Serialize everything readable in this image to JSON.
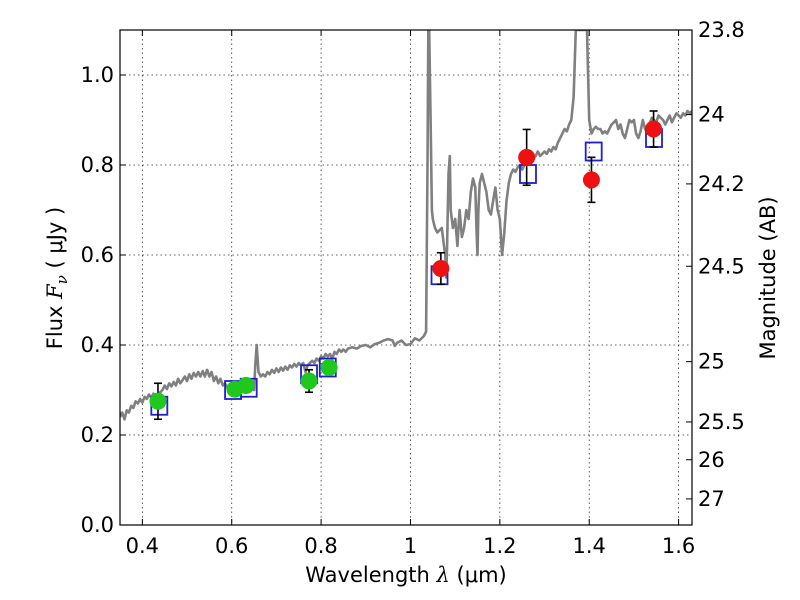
{
  "chart_data": {
    "type": "scatter",
    "xlabel_text": "Wavelength",
    "xlabel_symbol": "λ",
    "xlabel_unit": "(μm)",
    "ylabel_text": "Flux",
    "ylabel_symbol": "F",
    "ylabel_sub": "ν",
    "ylabel_unit": "( μJy )",
    "y2label": "Magnitude (AB)",
    "xlim": [
      0.35,
      1.63
    ],
    "ylim": [
      0.0,
      1.1
    ],
    "grid": true,
    "x_ticks": [
      {
        "value": 0.4,
        "label": "0.4"
      },
      {
        "value": 0.6,
        "label": "0.6"
      },
      {
        "value": 0.8,
        "label": "0.8"
      },
      {
        "value": 1.0,
        "label": "1"
      },
      {
        "value": 1.2,
        "label": "1.2"
      },
      {
        "value": 1.4,
        "label": "1.4"
      },
      {
        "value": 1.6,
        "label": "1.6"
      }
    ],
    "y_ticks": [
      {
        "value": 0.0,
        "label": "0.0"
      },
      {
        "value": 0.2,
        "label": "0.2"
      },
      {
        "value": 0.4,
        "label": "0.4"
      },
      {
        "value": 0.6,
        "label": "0.6"
      },
      {
        "value": 0.8,
        "label": "0.8"
      },
      {
        "value": 1.0,
        "label": "1.0"
      }
    ],
    "y2_ticks": [
      {
        "flux": 1.1,
        "label": "23.8"
      },
      {
        "flux": 0.912,
        "label": "24"
      },
      {
        "flux": 0.758,
        "label": "24.2"
      },
      {
        "flux": 0.575,
        "label": "24.5"
      },
      {
        "flux": 0.363,
        "label": "25"
      },
      {
        "flux": 0.229,
        "label": "25.5"
      },
      {
        "flux": 0.145,
        "label": "26"
      },
      {
        "flux": 0.058,
        "label": "27"
      }
    ],
    "template_spectrum": {
      "color": "#808080",
      "points": [
        [
          0.35,
          0.24
        ],
        [
          0.355,
          0.25
        ],
        [
          0.36,
          0.235
        ],
        [
          0.365,
          0.255
        ],
        [
          0.37,
          0.25
        ],
        [
          0.375,
          0.265
        ],
        [
          0.38,
          0.26
        ],
        [
          0.385,
          0.275
        ],
        [
          0.39,
          0.27
        ],
        [
          0.395,
          0.28
        ],
        [
          0.4,
          0.272
        ],
        [
          0.405,
          0.285
        ],
        [
          0.41,
          0.28
        ],
        [
          0.415,
          0.29
        ],
        [
          0.42,
          0.283
        ],
        [
          0.425,
          0.292
        ],
        [
          0.43,
          0.288
        ],
        [
          0.435,
          0.285
        ],
        [
          0.44,
          0.295
        ],
        [
          0.445,
          0.3
        ],
        [
          0.45,
          0.31
        ],
        [
          0.455,
          0.302
        ],
        [
          0.46,
          0.315
        ],
        [
          0.465,
          0.308
        ],
        [
          0.47,
          0.318
        ],
        [
          0.475,
          0.31
        ],
        [
          0.48,
          0.325
        ],
        [
          0.485,
          0.315
        ],
        [
          0.49,
          0.322
        ],
        [
          0.495,
          0.33
        ],
        [
          0.5,
          0.32
        ],
        [
          0.505,
          0.335
        ],
        [
          0.51,
          0.325
        ],
        [
          0.515,
          0.338
        ],
        [
          0.52,
          0.33
        ],
        [
          0.525,
          0.34
        ],
        [
          0.53,
          0.33
        ],
        [
          0.535,
          0.342
        ],
        [
          0.54,
          0.33
        ],
        [
          0.545,
          0.345
        ],
        [
          0.55,
          0.33
        ],
        [
          0.555,
          0.34
        ],
        [
          0.56,
          0.32
        ],
        [
          0.565,
          0.33
        ],
        [
          0.57,
          0.315
        ],
        [
          0.575,
          0.325
        ],
        [
          0.58,
          0.31
        ],
        [
          0.585,
          0.315
        ],
        [
          0.59,
          0.305
        ],
        [
          0.595,
          0.31
        ],
        [
          0.6,
          0.3
        ],
        [
          0.605,
          0.305
        ],
        [
          0.61,
          0.3
        ],
        [
          0.615,
          0.31
        ],
        [
          0.62,
          0.305
        ],
        [
          0.625,
          0.31
        ],
        [
          0.63,
          0.305
        ],
        [
          0.635,
          0.315
        ],
        [
          0.64,
          0.31
        ],
        [
          0.645,
          0.32
        ],
        [
          0.65,
          0.3
        ],
        [
          0.653,
          0.36
        ],
        [
          0.656,
          0.4
        ],
        [
          0.66,
          0.34
        ],
        [
          0.665,
          0.33
        ],
        [
          0.67,
          0.335
        ],
        [
          0.675,
          0.33
        ],
        [
          0.68,
          0.34
        ],
        [
          0.685,
          0.335
        ],
        [
          0.69,
          0.345
        ],
        [
          0.695,
          0.338
        ],
        [
          0.7,
          0.348
        ],
        [
          0.705,
          0.34
        ],
        [
          0.71,
          0.35
        ],
        [
          0.715,
          0.343
        ],
        [
          0.72,
          0.352
        ],
        [
          0.725,
          0.345
        ],
        [
          0.73,
          0.355
        ],
        [
          0.735,
          0.35
        ],
        [
          0.74,
          0.358
        ],
        [
          0.745,
          0.352
        ],
        [
          0.75,
          0.36
        ],
        [
          0.755,
          0.355
        ],
        [
          0.76,
          0.36
        ],
        [
          0.765,
          0.34
        ],
        [
          0.77,
          0.355
        ],
        [
          0.775,
          0.36
        ],
        [
          0.78,
          0.365
        ],
        [
          0.785,
          0.36
        ],
        [
          0.79,
          0.37
        ],
        [
          0.795,
          0.365
        ],
        [
          0.8,
          0.375
        ],
        [
          0.805,
          0.37
        ],
        [
          0.81,
          0.38
        ],
        [
          0.815,
          0.375
        ],
        [
          0.82,
          0.38
        ],
        [
          0.825,
          0.37
        ],
        [
          0.83,
          0.385
        ],
        [
          0.835,
          0.38
        ],
        [
          0.84,
          0.39
        ],
        [
          0.845,
          0.385
        ],
        [
          0.85,
          0.39
        ],
        [
          0.855,
          0.385
        ],
        [
          0.86,
          0.392
        ],
        [
          0.87,
          0.395
        ],
        [
          0.88,
          0.392
        ],
        [
          0.89,
          0.398
        ],
        [
          0.9,
          0.4
        ],
        [
          0.91,
          0.395
        ],
        [
          0.92,
          0.402
        ],
        [
          0.93,
          0.405
        ],
        [
          0.94,
          0.41
        ],
        [
          0.95,
          0.413
        ],
        [
          0.96,
          0.41
        ],
        [
          0.965,
          0.398
        ],
        [
          0.97,
          0.405
        ],
        [
          0.98,
          0.41
        ],
        [
          0.99,
          0.4
        ],
        [
          1.0,
          0.402
        ],
        [
          1.01,
          0.415
        ],
        [
          1.02,
          0.41
        ],
        [
          1.03,
          0.42
        ],
        [
          1.035,
          0.43
        ],
        [
          1.038,
          0.8
        ],
        [
          1.04,
          1.1
        ],
        [
          1.042,
          1.1
        ],
        [
          1.045,
          0.9
        ],
        [
          1.048,
          0.7
        ],
        [
          1.05,
          0.68
        ],
        [
          1.055,
          0.66
        ],
        [
          1.06,
          0.65
        ],
        [
          1.065,
          0.655
        ],
        [
          1.07,
          0.66
        ],
        [
          1.075,
          0.62
        ],
        [
          1.078,
          0.6
        ],
        [
          1.08,
          0.55
        ],
        [
          1.082,
          0.62
        ],
        [
          1.085,
          0.78
        ],
        [
          1.088,
          0.82
        ],
        [
          1.09,
          0.7
        ],
        [
          1.095,
          0.66
        ],
        [
          1.1,
          0.68
        ],
        [
          1.105,
          0.62
        ],
        [
          1.11,
          0.7
        ],
        [
          1.115,
          0.64
        ],
        [
          1.12,
          0.66
        ],
        [
          1.125,
          0.7
        ],
        [
          1.13,
          0.68
        ],
        [
          1.135,
          0.74
        ],
        [
          1.14,
          0.77
        ],
        [
          1.145,
          0.75
        ],
        [
          1.148,
          0.65
        ],
        [
          1.15,
          0.6
        ],
        [
          1.152,
          0.7
        ],
        [
          1.155,
          0.76
        ],
        [
          1.16,
          0.78
        ],
        [
          1.165,
          0.76
        ],
        [
          1.17,
          0.74
        ],
        [
          1.175,
          0.7
        ],
        [
          1.18,
          0.69
        ],
        [
          1.185,
          0.72
        ],
        [
          1.19,
          0.75
        ],
        [
          1.195,
          0.7
        ],
        [
          1.2,
          0.68
        ],
        [
          1.205,
          0.6
        ],
        [
          1.21,
          0.65
        ],
        [
          1.215,
          0.72
        ],
        [
          1.22,
          0.76
        ],
        [
          1.225,
          0.78
        ],
        [
          1.23,
          0.79
        ],
        [
          1.235,
          0.785
        ],
        [
          1.24,
          0.795
        ],
        [
          1.245,
          0.8
        ],
        [
          1.25,
          0.79
        ],
        [
          1.255,
          0.8
        ],
        [
          1.26,
          0.82
        ],
        [
          1.265,
          0.81
        ],
        [
          1.27,
          0.805
        ],
        [
          1.275,
          0.815
        ],
        [
          1.28,
          0.82
        ],
        [
          1.285,
          0.83
        ],
        [
          1.29,
          0.82
        ],
        [
          1.295,
          0.825
        ],
        [
          1.3,
          0.83
        ],
        [
          1.305,
          0.825
        ],
        [
          1.31,
          0.835
        ],
        [
          1.315,
          0.83
        ],
        [
          1.32,
          0.84
        ],
        [
          1.325,
          0.835
        ],
        [
          1.33,
          0.85
        ],
        [
          1.335,
          0.86
        ],
        [
          1.34,
          0.87
        ],
        [
          1.345,
          0.88
        ],
        [
          1.35,
          0.875
        ],
        [
          1.355,
          0.89
        ],
        [
          1.36,
          0.9
        ],
        [
          1.365,
          0.95
        ],
        [
          1.37,
          1.1
        ],
        [
          1.375,
          1.1
        ],
        [
          1.38,
          1.1
        ],
        [
          1.385,
          1.1
        ],
        [
          1.39,
          1.1
        ],
        [
          1.395,
          1.1
        ],
        [
          1.4,
          0.9
        ],
        [
          1.405,
          0.87
        ],
        [
          1.41,
          0.88
        ],
        [
          1.415,
          0.885
        ],
        [
          1.42,
          0.88
        ],
        [
          1.425,
          0.88
        ],
        [
          1.43,
          0.87
        ],
        [
          1.435,
          0.875
        ],
        [
          1.44,
          0.87
        ],
        [
          1.445,
          0.88
        ],
        [
          1.45,
          0.89
        ],
        [
          1.455,
          0.895
        ],
        [
          1.46,
          0.9
        ],
        [
          1.465,
          0.88
        ],
        [
          1.47,
          0.89
        ],
        [
          1.475,
          0.87
        ],
        [
          1.48,
          0.86
        ],
        [
          1.485,
          0.88
        ],
        [
          1.49,
          0.9
        ],
        [
          1.495,
          0.895
        ],
        [
          1.5,
          0.9
        ],
        [
          1.505,
          0.87
        ],
        [
          1.51,
          0.86
        ],
        [
          1.515,
          0.875
        ],
        [
          1.52,
          0.9
        ],
        [
          1.525,
          0.88
        ],
        [
          1.53,
          0.87
        ],
        [
          1.535,
          0.89
        ],
        [
          1.54,
          0.905
        ],
        [
          1.545,
          0.9
        ],
        [
          1.55,
          0.895
        ],
        [
          1.555,
          0.91
        ],
        [
          1.56,
          0.905
        ],
        [
          1.565,
          0.9
        ],
        [
          1.57,
          0.89
        ],
        [
          1.575,
          0.9
        ],
        [
          1.58,
          0.91
        ],
        [
          1.585,
          0.895
        ],
        [
          1.59,
          0.905
        ],
        [
          1.595,
          0.915
        ],
        [
          1.6,
          0.91
        ],
        [
          1.605,
          0.905
        ],
        [
          1.61,
          0.915
        ],
        [
          1.615,
          0.91
        ],
        [
          1.62,
          0.92
        ],
        [
          1.625,
          0.915
        ],
        [
          1.63,
          0.92
        ]
      ]
    },
    "model_squares": {
      "color": "#1f1fd0",
      "points": [
        {
          "x": 0.438,
          "y": 0.265
        },
        {
          "x": 0.603,
          "y": 0.3
        },
        {
          "x": 0.638,
          "y": 0.305
        },
        {
          "x": 0.773,
          "y": 0.335
        },
        {
          "x": 0.815,
          "y": 0.35
        },
        {
          "x": 1.065,
          "y": 0.555
        },
        {
          "x": 1.263,
          "y": 0.78
        },
        {
          "x": 1.41,
          "y": 0.83
        },
        {
          "x": 1.545,
          "y": 0.86
        }
      ]
    },
    "observed_optical": {
      "color": "#1ec81e",
      "points": [
        {
          "x": 0.435,
          "y": 0.275,
          "err": 0.04
        },
        {
          "x": 0.607,
          "y": 0.302,
          "err": 0.015
        },
        {
          "x": 0.632,
          "y": 0.31,
          "err": 0.015
        },
        {
          "x": 0.773,
          "y": 0.32,
          "err": 0.025
        },
        {
          "x": 0.818,
          "y": 0.35,
          "err": 0.0
        }
      ]
    },
    "observed_nir": {
      "color": "#ee1111",
      "points": [
        {
          "x": 1.068,
          "y": 0.57,
          "err": 0.035
        },
        {
          "x": 1.26,
          "y": 0.817,
          "err": 0.062
        },
        {
          "x": 1.405,
          "y": 0.767,
          "err": 0.05
        },
        {
          "x": 1.544,
          "y": 0.88,
          "err": 0.04
        }
      ]
    }
  }
}
